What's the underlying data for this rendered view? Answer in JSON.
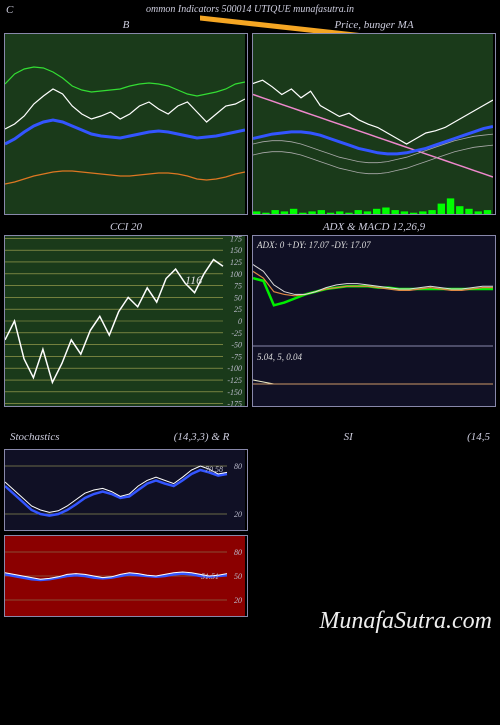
{
  "header": {
    "left": "C",
    "center": "ommon  Indicators 500014  UTIQUE munafasutra.in"
  },
  "watermark": "MunafaSutra.com",
  "orange_stroke": {
    "color": "#f5a623",
    "width": 4
  },
  "panels": {
    "bb": {
      "title": "B",
      "bg": "#1a3a1a",
      "series": {
        "green": {
          "color": "#33dd33",
          "width": 1.2,
          "y": [
            50,
            40,
            35,
            33,
            34,
            38,
            44,
            52,
            56,
            58,
            57,
            56,
            55,
            52,
            50,
            49,
            50,
            52,
            56,
            60,
            62,
            60,
            58,
            55,
            50,
            48
          ]
        },
        "white": {
          "color": "#ffffff",
          "width": 1.2,
          "y": [
            95,
            90,
            82,
            70,
            62,
            55,
            60,
            72,
            80,
            85,
            82,
            78,
            85,
            80,
            72,
            68,
            75,
            80,
            72,
            68,
            78,
            88,
            80,
            72,
            70,
            65
          ]
        },
        "blue": {
          "color": "#3355ff",
          "width": 3.0,
          "y": [
            110,
            105,
            98,
            92,
            88,
            86,
            88,
            92,
            96,
            100,
            102,
            103,
            104,
            102,
            100,
            98,
            97,
            98,
            100,
            102,
            104,
            103,
            102,
            100,
            98,
            96
          ]
        },
        "orange": {
          "color": "#dd7722",
          "width": 1.2,
          "y": [
            150,
            148,
            145,
            142,
            140,
            138,
            137,
            137,
            138,
            139,
            140,
            141,
            142,
            142,
            141,
            140,
            139,
            139,
            140,
            142,
            145,
            146,
            145,
            143,
            140,
            138
          ]
        }
      }
    },
    "price": {
      "title": "Price,  bunger  MA",
      "bg": "#1a3a1a",
      "series": {
        "white": {
          "color": "#ffffff",
          "width": 1.2,
          "y": [
            45,
            42,
            48,
            55,
            50,
            58,
            52,
            65,
            70,
            75,
            72,
            78,
            82,
            85,
            90,
            95,
            100,
            95,
            90,
            88,
            85,
            80,
            75,
            70,
            65,
            60
          ]
        },
        "pink": {
          "color": "#ee88cc",
          "width": 1.5,
          "y": [
            55,
            58,
            61,
            64,
            67,
            70,
            73,
            76,
            79,
            82,
            85,
            88,
            91,
            94,
            97,
            100,
            103,
            106,
            109,
            112,
            115,
            118,
            121,
            124,
            127,
            130
          ]
        },
        "blue": {
          "color": "#3355ff",
          "width": 3.0,
          "y": [
            95,
            93,
            91,
            90,
            89,
            89,
            90,
            92,
            95,
            98,
            101,
            104,
            106,
            108,
            109,
            109,
            108,
            106,
            104,
            101,
            98,
            95,
            92,
            89,
            86,
            84
          ]
        },
        "thin1": {
          "color": "#aaaaaa",
          "width": 0.8,
          "y": [
            100,
            98,
            97,
            97,
            98,
            100,
            103,
            106,
            109,
            112,
            114,
            116,
            117,
            117,
            116,
            114,
            112,
            109,
            106,
            103,
            100,
            97,
            95,
            93,
            92,
            91
          ]
        },
        "thin2": {
          "color": "#aaaaaa",
          "width": 0.8,
          "y": [
            110,
            108,
            107,
            107,
            108,
            110,
            113,
            116,
            119,
            122,
            124,
            126,
            127,
            127,
            126,
            124,
            122,
            119,
            116,
            113,
            110,
            107,
            105,
            103,
            102,
            101
          ]
        }
      },
      "volume": {
        "color": "#00ff00",
        "y": [
          2,
          1,
          3,
          2,
          4,
          1,
          2,
          3,
          1,
          2,
          1,
          3,
          2,
          4,
          5,
          3,
          2,
          1,
          2,
          3,
          8,
          12,
          6,
          4,
          2,
          3
        ]
      }
    },
    "cci": {
      "title": "CCI 20",
      "bg": "#1a3a1a",
      "grid_color": "#aaaa55",
      "ticks": [
        175,
        150,
        125,
        100,
        75,
        50,
        25,
        0,
        -25,
        -50,
        -75,
        -100,
        -125,
        -150,
        -175
      ],
      "value_label": "116",
      "series": {
        "color": "#ffffff",
        "width": 1.5,
        "y": [
          -40,
          0,
          -80,
          -120,
          -60,
          -130,
          -90,
          -40,
          -70,
          -20,
          10,
          -30,
          20,
          50,
          30,
          70,
          40,
          90,
          110,
          80,
          60,
          100,
          130,
          116
        ]
      }
    },
    "adx_macd": {
      "title": "ADX   & MACD 12,26,9",
      "bg": "#101025",
      "label1": "ADX: 0   +DY: 17.07 -DY: 17.07",
      "label2": "5.04,  5,  0.04",
      "top": {
        "green": {
          "color": "#00ee00",
          "width": 2.5,
          "y": [
            50,
            48,
            30,
            32,
            35,
            38,
            40,
            42,
            43,
            44,
            44,
            44,
            43,
            43,
            42,
            42,
            42,
            42,
            42,
            42,
            42,
            42,
            42,
            42
          ]
        },
        "orange": {
          "color": "#dd8844",
          "width": 1.2,
          "y": [
            55,
            50,
            40,
            38,
            37,
            38,
            40,
            42,
            43,
            44,
            44,
            44,
            43,
            42,
            41,
            41,
            42,
            43,
            42,
            41,
            41,
            42,
            43,
            43
          ]
        },
        "white": {
          "color": "#dddddd",
          "width": 1.0,
          "y": [
            60,
            55,
            45,
            40,
            38,
            38,
            40,
            43,
            45,
            46,
            46,
            45,
            44,
            43,
            42,
            42,
            43,
            44,
            43,
            42,
            42,
            43,
            44,
            44
          ]
        }
      },
      "bottom": {
        "line1": {
          "color": "#eeeecc",
          "width": 1.0,
          "y": [
            12,
            11,
            10,
            10,
            10,
            10,
            10,
            10,
            10,
            10,
            10,
            10,
            10,
            10,
            10,
            10,
            10,
            10,
            10,
            10,
            10,
            10,
            10,
            10
          ]
        },
        "line2": {
          "color": "#cc9966",
          "width": 1.0,
          "y": [
            10,
            10,
            10,
            10,
            10,
            10,
            10,
            10,
            10,
            10,
            10,
            10,
            10,
            10,
            10,
            10,
            10,
            10,
            10,
            10,
            10,
            10,
            10,
            10
          ]
        }
      }
    },
    "stoch": {
      "title_left": "Stochastics",
      "title_right": "(14,3,3) & R",
      "bg": "#101025",
      "grid_lines": [
        20,
        80
      ],
      "grid_color": "#888855",
      "value_labels": [
        "70.58"
      ],
      "series": {
        "blue": {
          "color": "#3355ff",
          "width": 2.5,
          "y": [
            55,
            45,
            35,
            25,
            20,
            18,
            20,
            25,
            32,
            40,
            45,
            48,
            45,
            40,
            42,
            50,
            58,
            62,
            58,
            55,
            62,
            70,
            75,
            72,
            68,
            70
          ]
        },
        "white": {
          "color": "#ffffff",
          "width": 1.0,
          "y": [
            60,
            50,
            40,
            30,
            25,
            22,
            24,
            30,
            38,
            46,
            50,
            52,
            48,
            42,
            45,
            55,
            62,
            66,
            62,
            58,
            66,
            75,
            80,
            76,
            70,
            72
          ]
        }
      }
    },
    "rsi": {
      "title_left": "SI",
      "title_right": "(14,5",
      "bg": "#8b0000",
      "grid_lines": [
        20,
        50,
        80
      ],
      "grid_color": "#886644",
      "value_labels": [
        "51.51"
      ],
      "series": {
        "blue": {
          "color": "#3355ff",
          "width": 2.5,
          "y": [
            52,
            50,
            48,
            46,
            45,
            46,
            48,
            50,
            51,
            50,
            48,
            47,
            48,
            50,
            52,
            51,
            50,
            49,
            50,
            52,
            53,
            52,
            50,
            49,
            50,
            51
          ]
        },
        "white": {
          "color": "#ffffff",
          "width": 1.0,
          "y": [
            54,
            52,
            50,
            48,
            46,
            47,
            49,
            52,
            53,
            52,
            50,
            48,
            49,
            52,
            54,
            53,
            51,
            50,
            52,
            54,
            55,
            54,
            52,
            50,
            51,
            53
          ]
        }
      }
    }
  }
}
